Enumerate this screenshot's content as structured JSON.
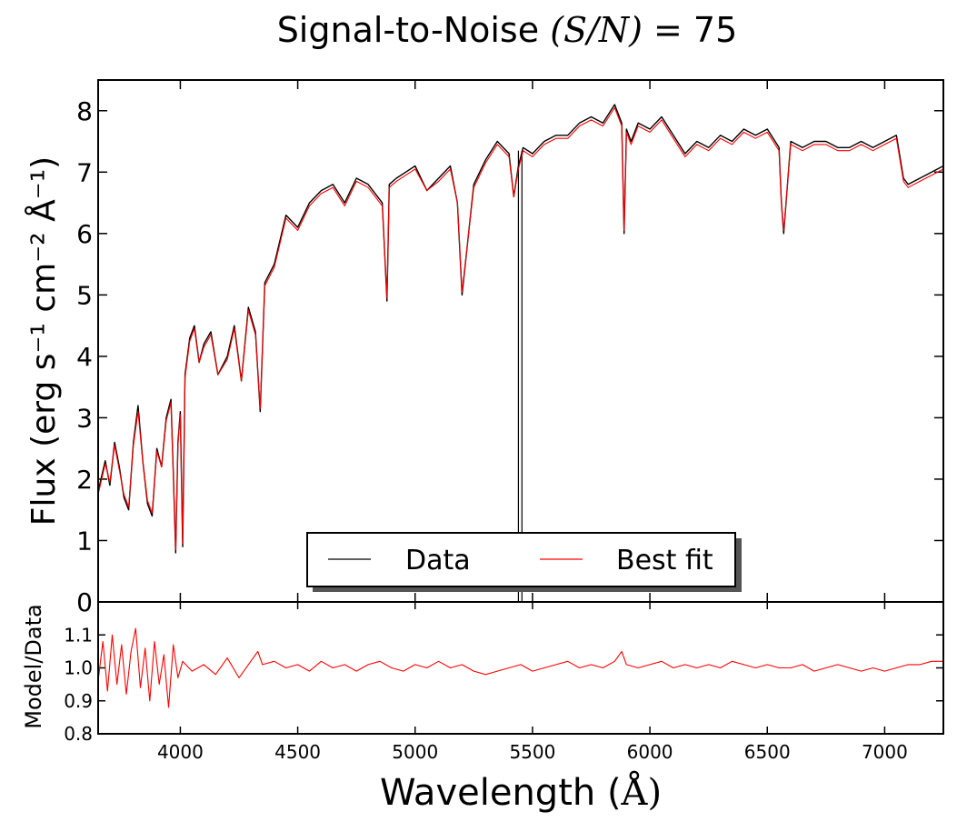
{
  "chart_data": [
    {
      "type": "line",
      "title_prefix": "Signal-to-Noise ",
      "title_math": "(S/N)",
      "title_suffix": " = 75",
      "xlabel_prefix": "Wavelength (",
      "xlabel_unit": "Å",
      "xlabel_suffix": ")",
      "ylabel": "Flux (erg s⁻¹ cm⁻² Å⁻¹)",
      "xlim": [
        3650,
        7250
      ],
      "ylim": [
        0,
        8.5
      ],
      "yticks": [
        0,
        1,
        2,
        3,
        4,
        5,
        6,
        7,
        8
      ],
      "legend": {
        "position": "lower-center",
        "entries": [
          "Data",
          "Best fit"
        ]
      },
      "colors": {
        "Data": "#000000",
        "Best fit": "#ff0000"
      },
      "series": [
        {
          "name": "Data",
          "x": [
            3650,
            3680,
            3700,
            3720,
            3740,
            3760,
            3780,
            3800,
            3820,
            3840,
            3860,
            3880,
            3900,
            3920,
            3940,
            3960,
            3970,
            3980,
            3990,
            4000,
            4010,
            4020,
            4040,
            4060,
            4080,
            4100,
            4130,
            4160,
            4200,
            4230,
            4260,
            4290,
            4320,
            4340,
            4360,
            4400,
            4450,
            4500,
            4550,
            4600,
            4650,
            4700,
            4750,
            4800,
            4860,
            4880,
            4890,
            4920,
            4960,
            5000,
            5050,
            5100,
            5150,
            5180,
            5200,
            5250,
            5300,
            5350,
            5400,
            5420,
            5440,
            5460,
            5500,
            5550,
            5600,
            5650,
            5700,
            5750,
            5800,
            5850,
            5880,
            5890,
            5900,
            5920,
            5950,
            6000,
            6050,
            6100,
            6150,
            6200,
            6250,
            6300,
            6350,
            6400,
            6450,
            6500,
            6550,
            6560,
            6570,
            6600,
            6650,
            6700,
            6750,
            6800,
            6850,
            6900,
            6950,
            7000,
            7050,
            7080,
            7100,
            7150,
            7200,
            7250
          ],
          "values": [
            1.8,
            2.3,
            1.9,
            2.6,
            2.2,
            1.7,
            1.5,
            2.6,
            3.2,
            2.3,
            1.6,
            1.4,
            2.5,
            2.2,
            3.0,
            3.3,
            2.1,
            0.8,
            2.6,
            3.1,
            0.9,
            3.7,
            4.3,
            4.5,
            3.9,
            4.2,
            4.4,
            3.7,
            4.0,
            4.5,
            3.6,
            4.8,
            4.4,
            3.1,
            5.2,
            5.5,
            6.3,
            6.1,
            6.5,
            6.7,
            6.8,
            6.5,
            6.9,
            6.8,
            6.5,
            4.9,
            6.8,
            6.9,
            7.0,
            7.1,
            6.7,
            6.9,
            7.1,
            6.5,
            5.0,
            6.8,
            7.2,
            7.5,
            7.3,
            6.6,
            7.1,
            7.4,
            7.3,
            7.5,
            7.6,
            7.6,
            7.8,
            7.9,
            7.8,
            8.1,
            7.8,
            6.0,
            7.7,
            7.5,
            7.8,
            7.7,
            7.9,
            7.6,
            7.3,
            7.5,
            7.4,
            7.6,
            7.5,
            7.7,
            7.6,
            7.7,
            7.4,
            6.5,
            6.0,
            7.5,
            7.4,
            7.5,
            7.5,
            7.4,
            7.4,
            7.5,
            7.4,
            7.5,
            7.6,
            6.9,
            6.8,
            6.9,
            7.0,
            7.1
          ]
        },
        {
          "name": "Best fit",
          "x": [
            3650,
            3680,
            3700,
            3720,
            3740,
            3760,
            3780,
            3800,
            3820,
            3840,
            3860,
            3880,
            3900,
            3920,
            3940,
            3960,
            3970,
            3980,
            3990,
            4000,
            4010,
            4020,
            4040,
            4060,
            4080,
            4100,
            4130,
            4160,
            4200,
            4230,
            4260,
            4290,
            4320,
            4340,
            4360,
            4400,
            4450,
            4500,
            4550,
            4600,
            4650,
            4700,
            4750,
            4800,
            4860,
            4880,
            4890,
            4920,
            4960,
            5000,
            5050,
            5100,
            5150,
            5180,
            5200,
            5250,
            5300,
            5350,
            5400,
            5420,
            5440,
            5460,
            5500,
            5550,
            5600,
            5650,
            5700,
            5750,
            5800,
            5850,
            5880,
            5890,
            5900,
            5920,
            5950,
            6000,
            6050,
            6100,
            6150,
            6200,
            6250,
            6300,
            6350,
            6400,
            6450,
            6500,
            6550,
            6560,
            6570,
            6600,
            6650,
            6700,
            6750,
            6800,
            6850,
            6900,
            6950,
            7000,
            7050,
            7080,
            7100,
            7150,
            7200,
            7250
          ],
          "values": [
            1.75,
            2.25,
            1.95,
            2.55,
            2.15,
            1.75,
            1.55,
            2.55,
            3.1,
            2.3,
            1.65,
            1.45,
            2.45,
            2.2,
            2.95,
            3.25,
            2.1,
            0.85,
            2.55,
            3.05,
            0.95,
            3.65,
            4.25,
            4.45,
            3.9,
            4.15,
            4.35,
            3.7,
            3.95,
            4.45,
            3.6,
            4.75,
            4.35,
            3.15,
            5.15,
            5.45,
            6.25,
            6.05,
            6.45,
            6.65,
            6.75,
            6.45,
            6.85,
            6.75,
            6.45,
            4.95,
            6.75,
            6.85,
            6.95,
            7.05,
            6.7,
            6.85,
            7.05,
            6.5,
            5.05,
            6.75,
            7.15,
            7.45,
            7.25,
            6.6,
            7.05,
            7.35,
            7.25,
            7.45,
            7.55,
            7.55,
            7.75,
            7.85,
            7.75,
            8.05,
            7.75,
            6.05,
            7.65,
            7.45,
            7.75,
            7.65,
            7.85,
            7.55,
            7.25,
            7.45,
            7.35,
            7.55,
            7.45,
            7.65,
            7.55,
            7.65,
            7.35,
            6.5,
            6.05,
            7.45,
            7.35,
            7.45,
            7.45,
            7.35,
            7.35,
            7.45,
            7.35,
            7.45,
            7.55,
            6.85,
            6.75,
            6.85,
            6.95,
            7.05
          ]
        }
      ],
      "vertical_lines": [
        5440,
        5455
      ]
    },
    {
      "type": "line",
      "ylabel": "Model/Data",
      "xlim": [
        3650,
        7250
      ],
      "ylim": [
        0.8,
        1.2
      ],
      "yticks": [
        0.8,
        0.9,
        1.0,
        1.1
      ],
      "ytick_labels": [
        "0.8",
        "0.9",
        "1.0",
        "1.1"
      ],
      "xticks": [
        4000,
        4500,
        5000,
        5500,
        6000,
        6500,
        7000
      ],
      "colors": {
        "Model/Data": "#ff0000"
      },
      "series": [
        {
          "name": "Model/Data",
          "x": [
            3650,
            3670,
            3690,
            3710,
            3730,
            3750,
            3770,
            3790,
            3810,
            3830,
            3850,
            3870,
            3890,
            3910,
            3930,
            3950,
            3970,
            3990,
            4010,
            4050,
            4100,
            4150,
            4200,
            4250,
            4300,
            4330,
            4350,
            4400,
            4450,
            4500,
            4550,
            4600,
            4650,
            4700,
            4750,
            4800,
            4850,
            4900,
            4950,
            5000,
            5050,
            5100,
            5150,
            5200,
            5250,
            5300,
            5350,
            5400,
            5450,
            5500,
            5550,
            5600,
            5650,
            5700,
            5750,
            5800,
            5850,
            5880,
            5900,
            5950,
            6000,
            6050,
            6100,
            6150,
            6200,
            6250,
            6300,
            6350,
            6400,
            6450,
            6500,
            6550,
            6600,
            6650,
            6700,
            6750,
            6800,
            6850,
            6900,
            6950,
            7000,
            7050,
            7100,
            7150,
            7200,
            7250
          ],
          "values": [
            0.96,
            1.08,
            0.93,
            1.1,
            0.95,
            1.07,
            0.92,
            1.05,
            1.12,
            0.94,
            1.06,
            0.9,
            1.08,
            0.95,
            1.04,
            0.88,
            1.07,
            0.97,
            1.02,
            0.99,
            1.01,
            0.98,
            1.03,
            0.97,
            1.02,
            1.05,
            1.01,
            1.02,
            1.0,
            1.01,
            0.99,
            1.02,
            1.0,
            1.01,
            0.99,
            1.01,
            1.02,
            1.0,
            0.99,
            1.01,
            1.0,
            1.02,
            1.0,
            1.01,
            0.99,
            0.98,
            0.99,
            1.0,
            1.01,
            0.99,
            1.0,
            1.01,
            1.02,
            1.0,
            1.01,
            1.0,
            1.02,
            1.05,
            1.01,
            1.0,
            1.01,
            1.02,
            1.0,
            1.01,
            1.0,
            1.01,
            1.0,
            1.02,
            1.01,
            1.0,
            1.01,
            1.0,
            1.0,
            1.01,
            0.99,
            1.0,
            1.01,
            1.0,
            0.99,
            1.0,
            0.99,
            1.0,
            1.01,
            1.01,
            1.02,
            1.02
          ]
        }
      ]
    }
  ]
}
